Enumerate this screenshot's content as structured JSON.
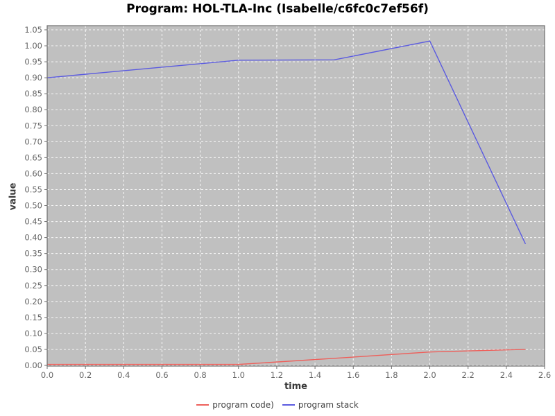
{
  "title": "Program: HOL-TLA-Inc (Isabelle/c6fc0c7ef56f)",
  "chart_data": {
    "type": "line",
    "title": "Program: HOL-TLA-Inc (Isabelle/c6fc0c7ef56f)",
    "xlabel": "time",
    "ylabel": "value",
    "xlim": [
      0.0,
      2.6
    ],
    "ylim": [
      0.0,
      1.05
    ],
    "grid": "white dashed gridlines on gray plot background",
    "legend_position": "bottom-center",
    "plot_bg_color": "#c0c0c0",
    "grid_color": "#ffffff",
    "tick_label_color": "#666666",
    "x_tick_labels": [
      "0.0",
      "0.2",
      "0.4",
      "0.6",
      "0.8",
      "1.0",
      "1.2",
      "1.4",
      "1.6",
      "1.8",
      "2.0",
      "2.2",
      "2.4",
      "2.6"
    ],
    "y_tick_labels": [
      "0.00",
      "0.05",
      "0.10",
      "0.15",
      "0.20",
      "0.25",
      "0.30",
      "0.35",
      "0.40",
      "0.45",
      "0.50",
      "0.55",
      "0.60",
      "0.65",
      "0.70",
      "0.75",
      "0.80",
      "0.85",
      "0.90",
      "0.95",
      "1.00",
      "1.05"
    ],
    "x": [
      0.0,
      1.0,
      1.5,
      2.0,
      2.5
    ],
    "series": [
      {
        "name": "program code)",
        "color": "#ee5f5a",
        "values": [
          0.003,
          0.003,
          0.022,
          0.042,
          0.05
        ]
      },
      {
        "name": "program stack",
        "color": "#5a5ae0",
        "values": [
          0.9,
          0.955,
          0.956,
          1.015,
          0.38
        ]
      }
    ]
  }
}
